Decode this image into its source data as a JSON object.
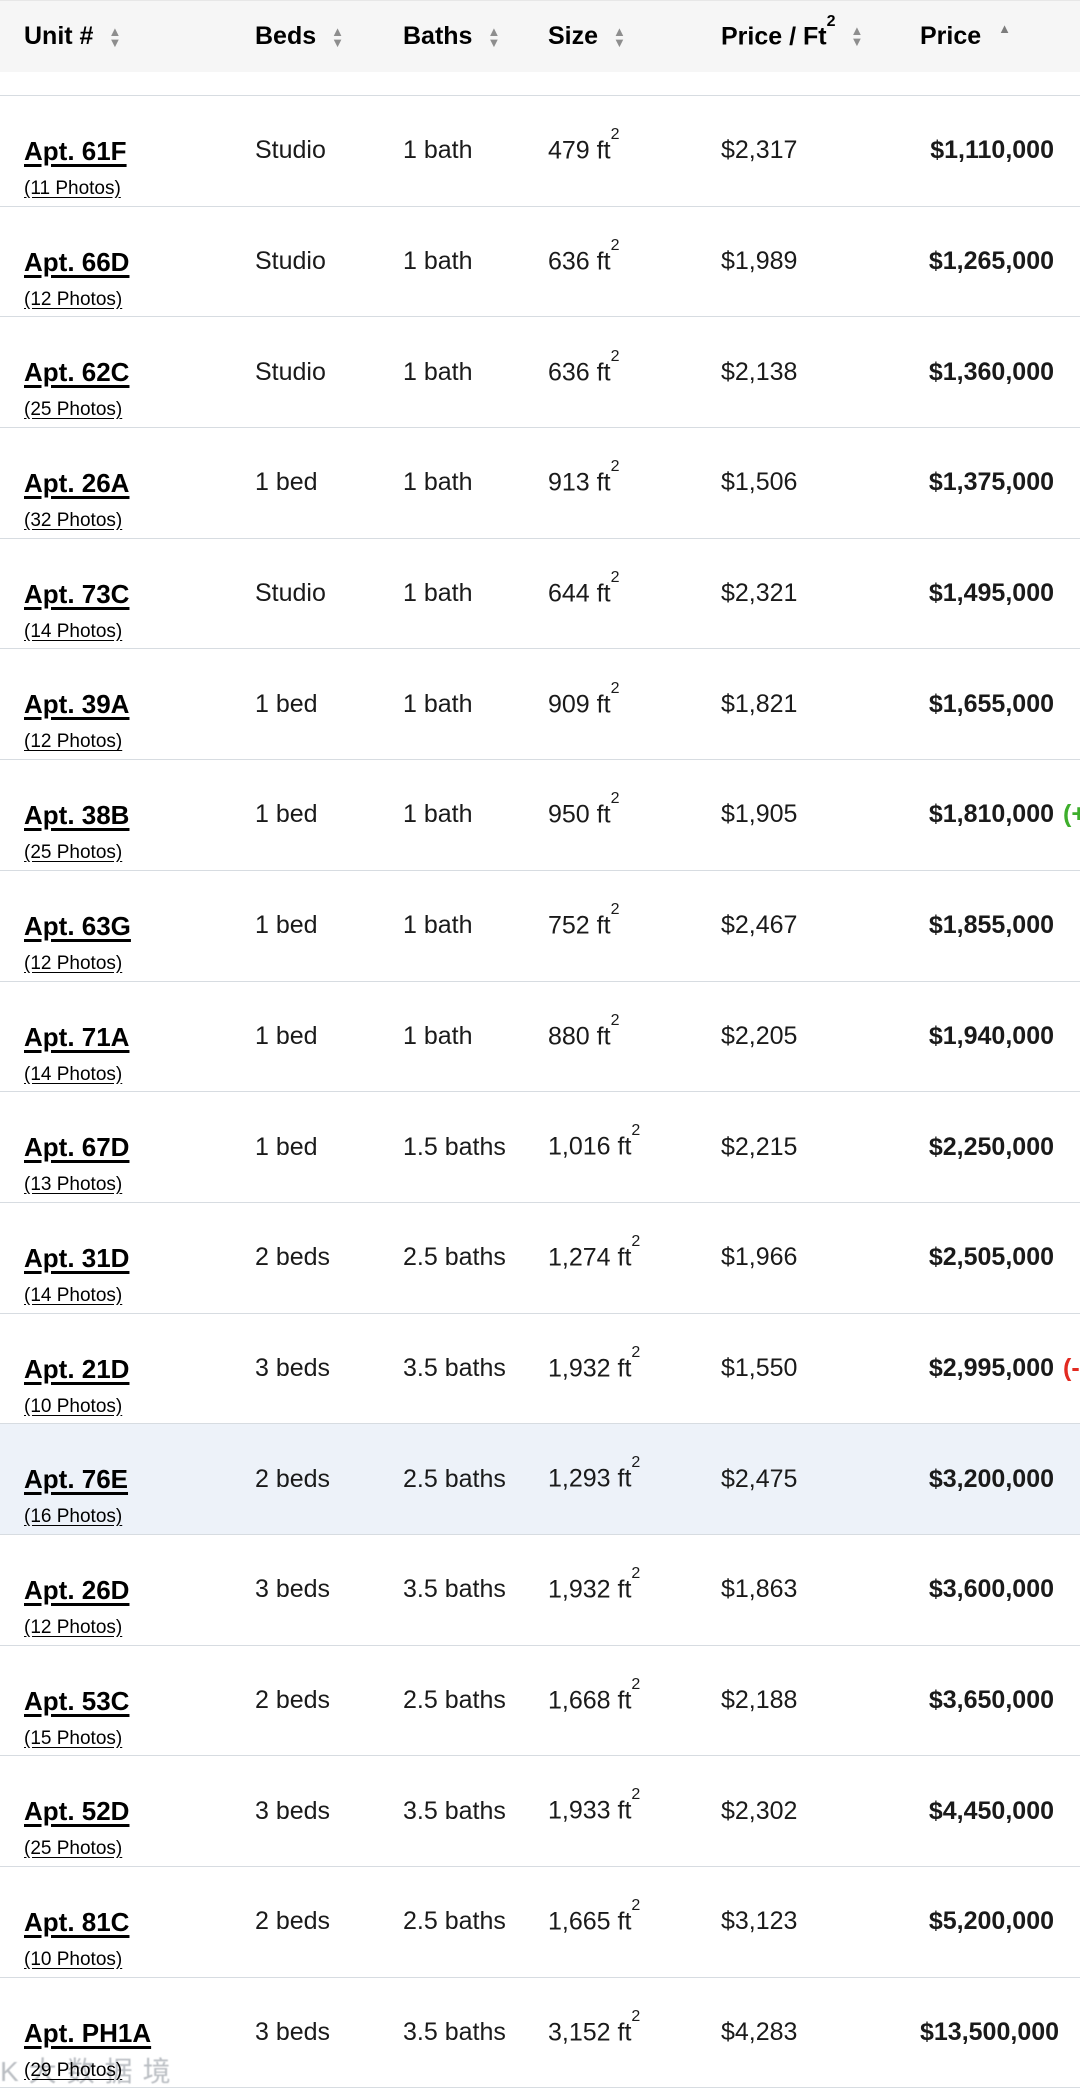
{
  "table": {
    "columns": [
      {
        "label": "Unit #",
        "sort": "sortable"
      },
      {
        "label": "Beds",
        "sort": "sortable"
      },
      {
        "label": "Baths",
        "sort": "sortable"
      },
      {
        "label": "Size",
        "sort": "sortable"
      },
      {
        "label": "Price / Ft",
        "sup": "2",
        "sort": "sortable"
      },
      {
        "label": "Price",
        "sort": "ascending"
      }
    ],
    "rows": [
      {
        "unit": "Apt. 61F",
        "photos": "(11 Photos)",
        "beds": "Studio",
        "baths": "1 bath",
        "size": "479 ft",
        "size_sup": "2",
        "price_per_ft": "$2,317",
        "price": "$1,110,000",
        "note": "",
        "note_type": "",
        "highlighted": false
      },
      {
        "unit": "Apt. 66D",
        "photos": "(12 Photos)",
        "beds": "Studio",
        "baths": "1 bath",
        "size": "636 ft",
        "size_sup": "2",
        "price_per_ft": "$1,989",
        "price": "$1,265,000",
        "note": "",
        "note_type": "",
        "highlighted": false
      },
      {
        "unit": "Apt. 62C",
        "photos": "(25 Photos)",
        "beds": "Studio",
        "baths": "1 bath",
        "size": "636 ft",
        "size_sup": "2",
        "price_per_ft": "$2,138",
        "price": "$1,360,000",
        "note": "",
        "note_type": "",
        "highlighted": false
      },
      {
        "unit": "Apt. 26A",
        "photos": "(32 Photos)",
        "beds": "1 bed",
        "baths": "1 bath",
        "size": "913 ft",
        "size_sup": "2",
        "price_per_ft": "$1,506",
        "price": "$1,375,000",
        "note": "",
        "note_type": "",
        "highlighted": false
      },
      {
        "unit": "Apt. 73C",
        "photos": "(14 Photos)",
        "beds": "Studio",
        "baths": "1 bath",
        "size": "644 ft",
        "size_sup": "2",
        "price_per_ft": "$2,321",
        "price": "$1,495,000",
        "note": "",
        "note_type": "",
        "highlighted": false
      },
      {
        "unit": "Apt. 39A",
        "photos": "(12 Photos)",
        "beds": "1 bed",
        "baths": "1 bath",
        "size": "909 ft",
        "size_sup": "2",
        "price_per_ft": "$1,821",
        "price": "$1,655,000",
        "note": "",
        "note_type": "",
        "highlighted": false
      },
      {
        "unit": "Apt. 38B",
        "photos": "(25 Photos)",
        "beds": "1 bed",
        "baths": "1 bath",
        "size": "950 ft",
        "size_sup": "2",
        "price_per_ft": "$1,905",
        "price": "$1,810,000",
        "note": "(+",
        "note_type": "gain",
        "highlighted": false
      },
      {
        "unit": "Apt. 63G",
        "photos": "(12 Photos)",
        "beds": "1 bed",
        "baths": "1 bath",
        "size": "752 ft",
        "size_sup": "2",
        "price_per_ft": "$2,467",
        "price": "$1,855,000",
        "note": "",
        "note_type": "",
        "highlighted": false
      },
      {
        "unit": "Apt. 71A",
        "photos": "(14 Photos)",
        "beds": "1 bed",
        "baths": "1 bath",
        "size": "880 ft",
        "size_sup": "2",
        "price_per_ft": "$2,205",
        "price": "$1,940,000",
        "note": "",
        "note_type": "",
        "highlighted": false
      },
      {
        "unit": "Apt. 67D",
        "photos": "(13 Photos)",
        "beds": "1 bed",
        "baths": "1.5 baths",
        "size": "1,016 ft",
        "size_sup": "2",
        "price_per_ft": "$2,215",
        "price": "$2,250,000",
        "note": "",
        "note_type": "",
        "highlighted": false
      },
      {
        "unit": "Apt. 31D",
        "photos": "(14 Photos)",
        "beds": "2 beds",
        "baths": "2.5 baths",
        "size": "1,274 ft",
        "size_sup": "2",
        "price_per_ft": "$1,966",
        "price": "$2,505,000",
        "note": "",
        "note_type": "",
        "highlighted": false
      },
      {
        "unit": "Apt. 21D",
        "photos": "(10 Photos)",
        "beds": "3 beds",
        "baths": "3.5 baths",
        "size": "1,932 ft",
        "size_sup": "2",
        "price_per_ft": "$1,550",
        "price": "$2,995,000",
        "note": "(-",
        "note_type": "loss",
        "highlighted": false
      },
      {
        "unit": "Apt. 76E",
        "photos": "(16 Photos)",
        "beds": "2 beds",
        "baths": "2.5 baths",
        "size": "1,293 ft",
        "size_sup": "2",
        "price_per_ft": "$2,475",
        "price": "$3,200,000",
        "note": "",
        "note_type": "",
        "highlighted": true
      },
      {
        "unit": "Apt. 26D",
        "photos": "(12 Photos)",
        "beds": "3 beds",
        "baths": "3.5 baths",
        "size": "1,932 ft",
        "size_sup": "2",
        "price_per_ft": "$1,863",
        "price": "$3,600,000",
        "note": "",
        "note_type": "",
        "highlighted": false
      },
      {
        "unit": "Apt. 53C",
        "photos": "(15 Photos)",
        "beds": "2 beds",
        "baths": "2.5 baths",
        "size": "1,668 ft",
        "size_sup": "2",
        "price_per_ft": "$2,188",
        "price": "$3,650,000",
        "note": "",
        "note_type": "",
        "highlighted": false
      },
      {
        "unit": "Apt. 52D",
        "photos": "(25 Photos)",
        "beds": "3 beds",
        "baths": "3.5 baths",
        "size": "1,933 ft",
        "size_sup": "2",
        "price_per_ft": "$2,302",
        "price": "$4,450,000",
        "note": "",
        "note_type": "",
        "highlighted": false
      },
      {
        "unit": "Apt. 81C",
        "photos": "(10 Photos)",
        "beds": "2 beds",
        "baths": "2.5 baths",
        "size": "1,665 ft",
        "size_sup": "2",
        "price_per_ft": "$3,123",
        "price": "$5,200,000",
        "note": "",
        "note_type": "",
        "highlighted": false
      },
      {
        "unit": "Apt. PH1A",
        "photos": "(29 Photos)",
        "beds": "3 beds",
        "baths": "3.5 baths",
        "size": "3,152 ft",
        "size_sup": "2",
        "price_per_ft": "$4,283",
        "price": "$13,500,000",
        "note": "",
        "note_type": "",
        "highlighted": false
      }
    ]
  },
  "watermark": {
    "text": "K大数据境"
  },
  "colors": {
    "gain": "#3eae2c",
    "loss": "#e22a21",
    "highlight": "#edf2f9",
    "divider": "#d7dce1",
    "header_bg": "#f6f6f6",
    "sort_icon": "#8e8e8e"
  }
}
